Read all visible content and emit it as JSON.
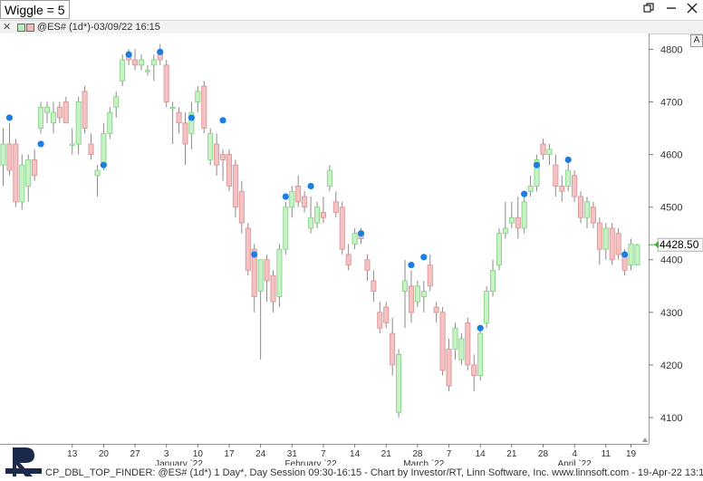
{
  "window": {
    "title_label": "Wiggle = 5",
    "restore_icon": "restore-icon",
    "minimize_icon": "minimize-icon",
    "close_icon": "close-icon"
  },
  "chart_header": {
    "title": "@ES# (1d*)-03/09/22 16:15",
    "close_icon": "close-icon",
    "color_up": "#b9ecb9",
    "color_down": "#f2b9b9",
    "a_button": "A"
  },
  "price_label": "4428.50",
  "footer_text": "CP_DBL_TOP_FINDER: @ES# (1d*) 1 Day*, Day Session 09:30-16:15 - Chart by Investor/RT, Linn Software, Inc. www.linnsoft.com - 19-Apr-22 13:13",
  "logo_text": "INVESTOR/RT",
  "colors": {
    "up_body": "#c6f2c6",
    "up_border": "#7fd07f",
    "down_body": "#f4c2c2",
    "down_border": "#d98f8f",
    "marker": "#1a7fe0",
    "grid": "#e6e6e6",
    "axis_text": "#333333"
  },
  "chart_data": {
    "type": "candlestick",
    "y_axis": {
      "min": 4050,
      "max": 4830,
      "ticks": [
        4100,
        4200,
        4300,
        4400,
        4500,
        4600,
        4700,
        4800
      ]
    },
    "x_ticks": [
      {
        "label": "13",
        "i": 11
      },
      {
        "label": "20",
        "i": 16
      },
      {
        "label": "27",
        "i": 21
      },
      {
        "label": "3",
        "i": 26
      },
      {
        "label": "10",
        "i": 31
      },
      {
        "label": "17",
        "i": 36
      },
      {
        "label": "24",
        "i": 41
      },
      {
        "label": "31",
        "i": 46
      },
      {
        "label": "7",
        "i": 51
      },
      {
        "label": "14",
        "i": 56
      },
      {
        "label": "21",
        "i": 61
      },
      {
        "label": "28",
        "i": 66
      },
      {
        "label": "7",
        "i": 71
      },
      {
        "label": "14",
        "i": 76
      },
      {
        "label": "21",
        "i": 81
      },
      {
        "label": "28",
        "i": 86
      },
      {
        "label": "4",
        "i": 91
      },
      {
        "label": "11",
        "i": 96
      },
      {
        "label": "19",
        "i": 100
      }
    ],
    "month_labels": [
      {
        "label": "January `22",
        "i": 28
      },
      {
        "label": "February `22",
        "i": 49
      },
      {
        "label": "March `22",
        "i": 67
      },
      {
        "label": "April `22",
        "i": 91
      }
    ],
    "current_price": 4428.5,
    "candles": [
      {
        "o": 4580,
        "h": 4650,
        "l": 4540,
        "c": 4620
      },
      {
        "o": 4620,
        "h": 4660,
        "l": 4560,
        "c": 4570
      },
      {
        "o": 4620,
        "h": 4630,
        "l": 4500,
        "c": 4510
      },
      {
        "o": 4510,
        "h": 4600,
        "l": 4495,
        "c": 4580
      },
      {
        "o": 4540,
        "h": 4600,
        "l": 4510,
        "c": 4590
      },
      {
        "o": 4590,
        "h": 4610,
        "l": 4550,
        "c": 4560
      },
      {
        "o": 4650,
        "h": 4700,
        "l": 4640,
        "c": 4690
      },
      {
        "o": 4680,
        "h": 4700,
        "l": 4660,
        "c": 4690
      },
      {
        "o": 4660,
        "h": 4700,
        "l": 4640,
        "c": 4680
      },
      {
        "o": 4690,
        "h": 4700,
        "l": 4660,
        "c": 4670
      },
      {
        "o": 4700,
        "h": 4710,
        "l": 4660,
        "c": 4660
      },
      {
        "o": 4620,
        "h": 4650,
        "l": 4600,
        "c": 4620
      },
      {
        "o": 4620,
        "h": 4710,
        "l": 4600,
        "c": 4700
      },
      {
        "o": 4720,
        "h": 4730,
        "l": 4640,
        "c": 4650
      },
      {
        "o": 4620,
        "h": 4640,
        "l": 4590,
        "c": 4600
      },
      {
        "o": 4560,
        "h": 4580,
        "l": 4520,
        "c": 4570
      },
      {
        "o": 4580,
        "h": 4660,
        "l": 4570,
        "c": 4640
      },
      {
        "o": 4640,
        "h": 4690,
        "l": 4630,
        "c": 4680
      },
      {
        "o": 4690,
        "h": 4720,
        "l": 4670,
        "c": 4710
      },
      {
        "o": 4740,
        "h": 4790,
        "l": 4730,
        "c": 4780
      },
      {
        "o": 4790,
        "h": 4800,
        "l": 4770,
        "c": 4780
      },
      {
        "o": 4780,
        "h": 4800,
        "l": 4760,
        "c": 4770
      },
      {
        "o": 4770,
        "h": 4790,
        "l": 4760,
        "c": 4780
      },
      {
        "o": 4760,
        "h": 4770,
        "l": 4750,
        "c": 4760
      },
      {
        "o": 4770,
        "h": 4790,
        "l": 4740,
        "c": 4780
      },
      {
        "o": 4790,
        "h": 4810,
        "l": 4770,
        "c": 4780
      },
      {
        "o": 4770,
        "h": 4780,
        "l": 4690,
        "c": 4700
      },
      {
        "o": 4690,
        "h": 4700,
        "l": 4620,
        "c": 4690
      },
      {
        "o": 4680,
        "h": 4690,
        "l": 4640,
        "c": 4660
      },
      {
        "o": 4660,
        "h": 4680,
        "l": 4580,
        "c": 4620
      },
      {
        "o": 4640,
        "h": 4700,
        "l": 4610,
        "c": 4680
      },
      {
        "o": 4700,
        "h": 4730,
        "l": 4680,
        "c": 4720
      },
      {
        "o": 4730,
        "h": 4740,
        "l": 4640,
        "c": 4650
      },
      {
        "o": 4590,
        "h": 4650,
        "l": 4580,
        "c": 4640
      },
      {
        "o": 4620,
        "h": 4640,
        "l": 4560,
        "c": 4580
      },
      {
        "o": 4600,
        "h": 4610,
        "l": 4550,
        "c": 4590
      },
      {
        "o": 4600,
        "h": 4610,
        "l": 4530,
        "c": 4540
      },
      {
        "o": 4580,
        "h": 4590,
        "l": 4480,
        "c": 4500
      },
      {
        "o": 4530,
        "h": 4550,
        "l": 4450,
        "c": 4470
      },
      {
        "o": 4460,
        "h": 4470,
        "l": 4370,
        "c": 4380
      },
      {
        "o": 4420,
        "h": 4430,
        "l": 4300,
        "c": 4330
      },
      {
        "o": 4340,
        "h": 4400,
        "l": 4210,
        "c": 4400
      },
      {
        "o": 4400,
        "h": 4410,
        "l": 4320,
        "c": 4360
      },
      {
        "o": 4370,
        "h": 4380,
        "l": 4300,
        "c": 4320
      },
      {
        "o": 4330,
        "h": 4430,
        "l": 4310,
        "c": 4420
      },
      {
        "o": 4420,
        "h": 4510,
        "l": 4410,
        "c": 4500
      },
      {
        "o": 4500,
        "h": 4540,
        "l": 4480,
        "c": 4530
      },
      {
        "o": 4540,
        "h": 4560,
        "l": 4500,
        "c": 4510
      },
      {
        "o": 4520,
        "h": 4530,
        "l": 4490,
        "c": 4500
      },
      {
        "o": 4460,
        "h": 4520,
        "l": 4450,
        "c": 4480
      },
      {
        "o": 4470,
        "h": 4510,
        "l": 4460,
        "c": 4500
      },
      {
        "o": 4490,
        "h": 4520,
        "l": 4470,
        "c": 4480
      },
      {
        "o": 4540,
        "h": 4580,
        "l": 4530,
        "c": 4570
      },
      {
        "o": 4510,
        "h": 4530,
        "l": 4480,
        "c": 4490
      },
      {
        "o": 4500,
        "h": 4510,
        "l": 4410,
        "c": 4420
      },
      {
        "o": 4410,
        "h": 4430,
        "l": 4380,
        "c": 4390
      },
      {
        "o": 4430,
        "h": 4460,
        "l": 4420,
        "c": 4450
      },
      {
        "o": 4450,
        "h": 4460,
        "l": 4430,
        "c": 4440
      },
      {
        "o": 4400,
        "h": 4410,
        "l": 4360,
        "c": 4380
      },
      {
        "o": 4360,
        "h": 4380,
        "l": 4320,
        "c": 4340
      },
      {
        "o": 4300,
        "h": 4320,
        "l": 4260,
        "c": 4270
      },
      {
        "o": 4310,
        "h": 4320,
        "l": 4270,
        "c": 4280
      },
      {
        "o": 4260,
        "h": 4290,
        "l": 4180,
        "c": 4200
      },
      {
        "o": 4110,
        "h": 4230,
        "l": 4100,
        "c": 4220
      },
      {
        "o": 4340,
        "h": 4400,
        "l": 4270,
        "c": 4360
      },
      {
        "o": 4350,
        "h": 4380,
        "l": 4280,
        "c": 4300
      },
      {
        "o": 4320,
        "h": 4360,
        "l": 4310,
        "c": 4350
      },
      {
        "o": 4330,
        "h": 4360,
        "l": 4300,
        "c": 4340
      },
      {
        "o": 4390,
        "h": 4410,
        "l": 4340,
        "c": 4350
      },
      {
        "o": 4310,
        "h": 4320,
        "l": 4280,
        "c": 4300
      },
      {
        "o": 4300,
        "h": 4310,
        "l": 4180,
        "c": 4190
      },
      {
        "o": 4230,
        "h": 4250,
        "l": 4150,
        "c": 4160
      },
      {
        "o": 4230,
        "h": 4280,
        "l": 4210,
        "c": 4270
      },
      {
        "o": 4210,
        "h": 4260,
        "l": 4200,
        "c": 4250
      },
      {
        "o": 4280,
        "h": 4290,
        "l": 4190,
        "c": 4200
      },
      {
        "o": 4200,
        "h": 4220,
        "l": 4150,
        "c": 4180
      },
      {
        "o": 4180,
        "h": 4270,
        "l": 4170,
        "c": 4260
      },
      {
        "o": 4280,
        "h": 4350,
        "l": 4270,
        "c": 4340
      },
      {
        "o": 4340,
        "h": 4400,
        "l": 4330,
        "c": 4380
      },
      {
        "o": 4390,
        "h": 4460,
        "l": 4380,
        "c": 4450
      },
      {
        "o": 4450,
        "h": 4510,
        "l": 4440,
        "c": 4460
      },
      {
        "o": 4470,
        "h": 4510,
        "l": 4460,
        "c": 4480
      },
      {
        "o": 4480,
        "h": 4520,
        "l": 4440,
        "c": 4460
      },
      {
        "o": 4460,
        "h": 4530,
        "l": 4450,
        "c": 4510
      },
      {
        "o": 4530,
        "h": 4560,
        "l": 4520,
        "c": 4540
      },
      {
        "o": 4540,
        "h": 4600,
        "l": 4530,
        "c": 4590
      },
      {
        "o": 4620,
        "h": 4630,
        "l": 4590,
        "c": 4600
      },
      {
        "o": 4600,
        "h": 4620,
        "l": 4580,
        "c": 4610
      },
      {
        "o": 4580,
        "h": 4600,
        "l": 4520,
        "c": 4540
      },
      {
        "o": 4540,
        "h": 4560,
        "l": 4510,
        "c": 4530
      },
      {
        "o": 4540,
        "h": 4590,
        "l": 4530,
        "c": 4570
      },
      {
        "o": 4560,
        "h": 4570,
        "l": 4510,
        "c": 4520
      },
      {
        "o": 4520,
        "h": 4530,
        "l": 4470,
        "c": 4480
      },
      {
        "o": 4480,
        "h": 4520,
        "l": 4460,
        "c": 4510
      },
      {
        "o": 4500,
        "h": 4510,
        "l": 4460,
        "c": 4470
      },
      {
        "o": 4470,
        "h": 4480,
        "l": 4390,
        "c": 4420
      },
      {
        "o": 4420,
        "h": 4470,
        "l": 4400,
        "c": 4460
      },
      {
        "o": 4460,
        "h": 4470,
        "l": 4390,
        "c": 4400
      },
      {
        "o": 4450,
        "h": 4460,
        "l": 4400,
        "c": 4410
      },
      {
        "o": 4410,
        "h": 4420,
        "l": 4370,
        "c": 4380
      },
      {
        "o": 4390,
        "h": 4440,
        "l": 4380,
        "c": 4430
      },
      {
        "o": 4390,
        "h": 4430,
        "l": 4390,
        "c": 4428.5
      }
    ],
    "markers": [
      {
        "i": 1,
        "y": 4670
      },
      {
        "i": 6,
        "y": 4620
      },
      {
        "i": 16,
        "y": 4580
      },
      {
        "i": 20,
        "y": 4790
      },
      {
        "i": 25,
        "y": 4795
      },
      {
        "i": 30,
        "y": 4670
      },
      {
        "i": 35,
        "y": 4665
      },
      {
        "i": 40,
        "y": 4410
      },
      {
        "i": 45,
        "y": 4520
      },
      {
        "i": 49,
        "y": 4540
      },
      {
        "i": 57,
        "y": 4450
      },
      {
        "i": 65,
        "y": 4390
      },
      {
        "i": 67,
        "y": 4405
      },
      {
        "i": 76,
        "y": 4270
      },
      {
        "i": 83,
        "y": 4525
      },
      {
        "i": 85,
        "y": 4580
      },
      {
        "i": 90,
        "y": 4590
      },
      {
        "i": 99,
        "y": 4410
      }
    ]
  }
}
